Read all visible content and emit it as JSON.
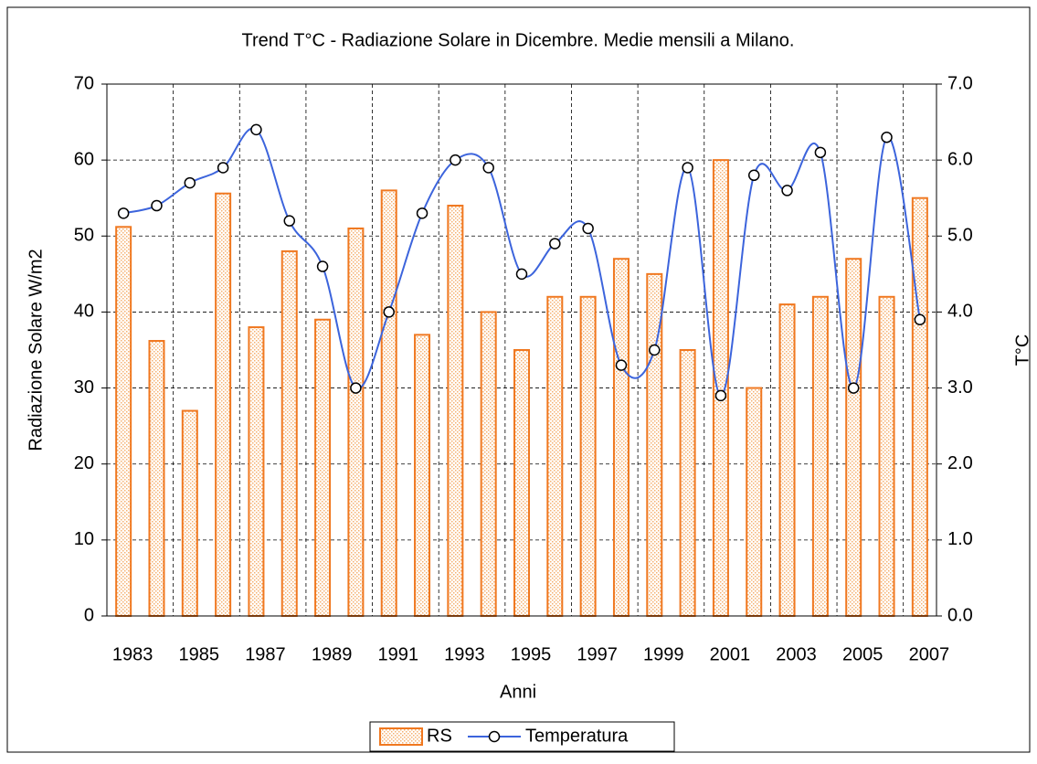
{
  "chart_data": {
    "type": "bar-line",
    "title": "Trend T°C - Radiazione Solare in Dicembre. Medie mensili a Milano.",
    "x_label": "Anni",
    "y_label": "Radiazione Solare W/m2",
    "y2_label": "T°C",
    "categories": [
      "1983",
      null,
      "1985",
      null,
      "1987",
      null,
      "1989",
      null,
      "1991",
      null,
      "1993",
      null,
      "1995",
      null,
      "1997",
      null,
      "1999",
      null,
      "2001",
      null,
      "2003",
      null,
      "2005",
      null,
      "2007"
    ],
    "series": [
      {
        "name": "RS",
        "type": "bar",
        "color": "#f07820",
        "values": [
          51.2,
          36.2,
          27,
          55.6,
          38,
          48,
          39,
          51,
          56,
          37,
          54,
          40,
          35,
          42,
          42,
          47,
          45,
          35,
          60,
          30,
          41,
          42,
          47,
          42,
          55
        ]
      },
      {
        "name": "Temperatura",
        "type": "line",
        "axis": "y2",
        "color": "#3c64dc",
        "values": [
          5.3,
          5.4,
          5.7,
          5.9,
          6.4,
          5.2,
          4.6,
          3.0,
          4.0,
          5.3,
          6.0,
          5.9,
          4.5,
          4.9,
          5.1,
          3.3,
          3.5,
          5.9,
          2.9,
          5.8,
          5.6,
          6.1,
          3.0,
          6.3,
          3.9
        ]
      }
    ],
    "ylim": [
      0,
      70
    ],
    "yticks": [
      0,
      10,
      20,
      30,
      40,
      50,
      60,
      70
    ],
    "y2lim": [
      0,
      7
    ],
    "y2ticks": [
      {
        "value": 0,
        "label": "0.0"
      },
      {
        "value": 1,
        "label": "1.0"
      },
      {
        "value": 2,
        "label": "2.0"
      },
      {
        "value": 3,
        "label": "3.0"
      },
      {
        "value": 4,
        "label": "4.0"
      },
      {
        "value": 5,
        "label": "5.0"
      },
      {
        "value": 6,
        "label": "6.0"
      },
      {
        "value": 7,
        "label": "7.0"
      }
    ],
    "grid": true,
    "legend": "bottom"
  }
}
